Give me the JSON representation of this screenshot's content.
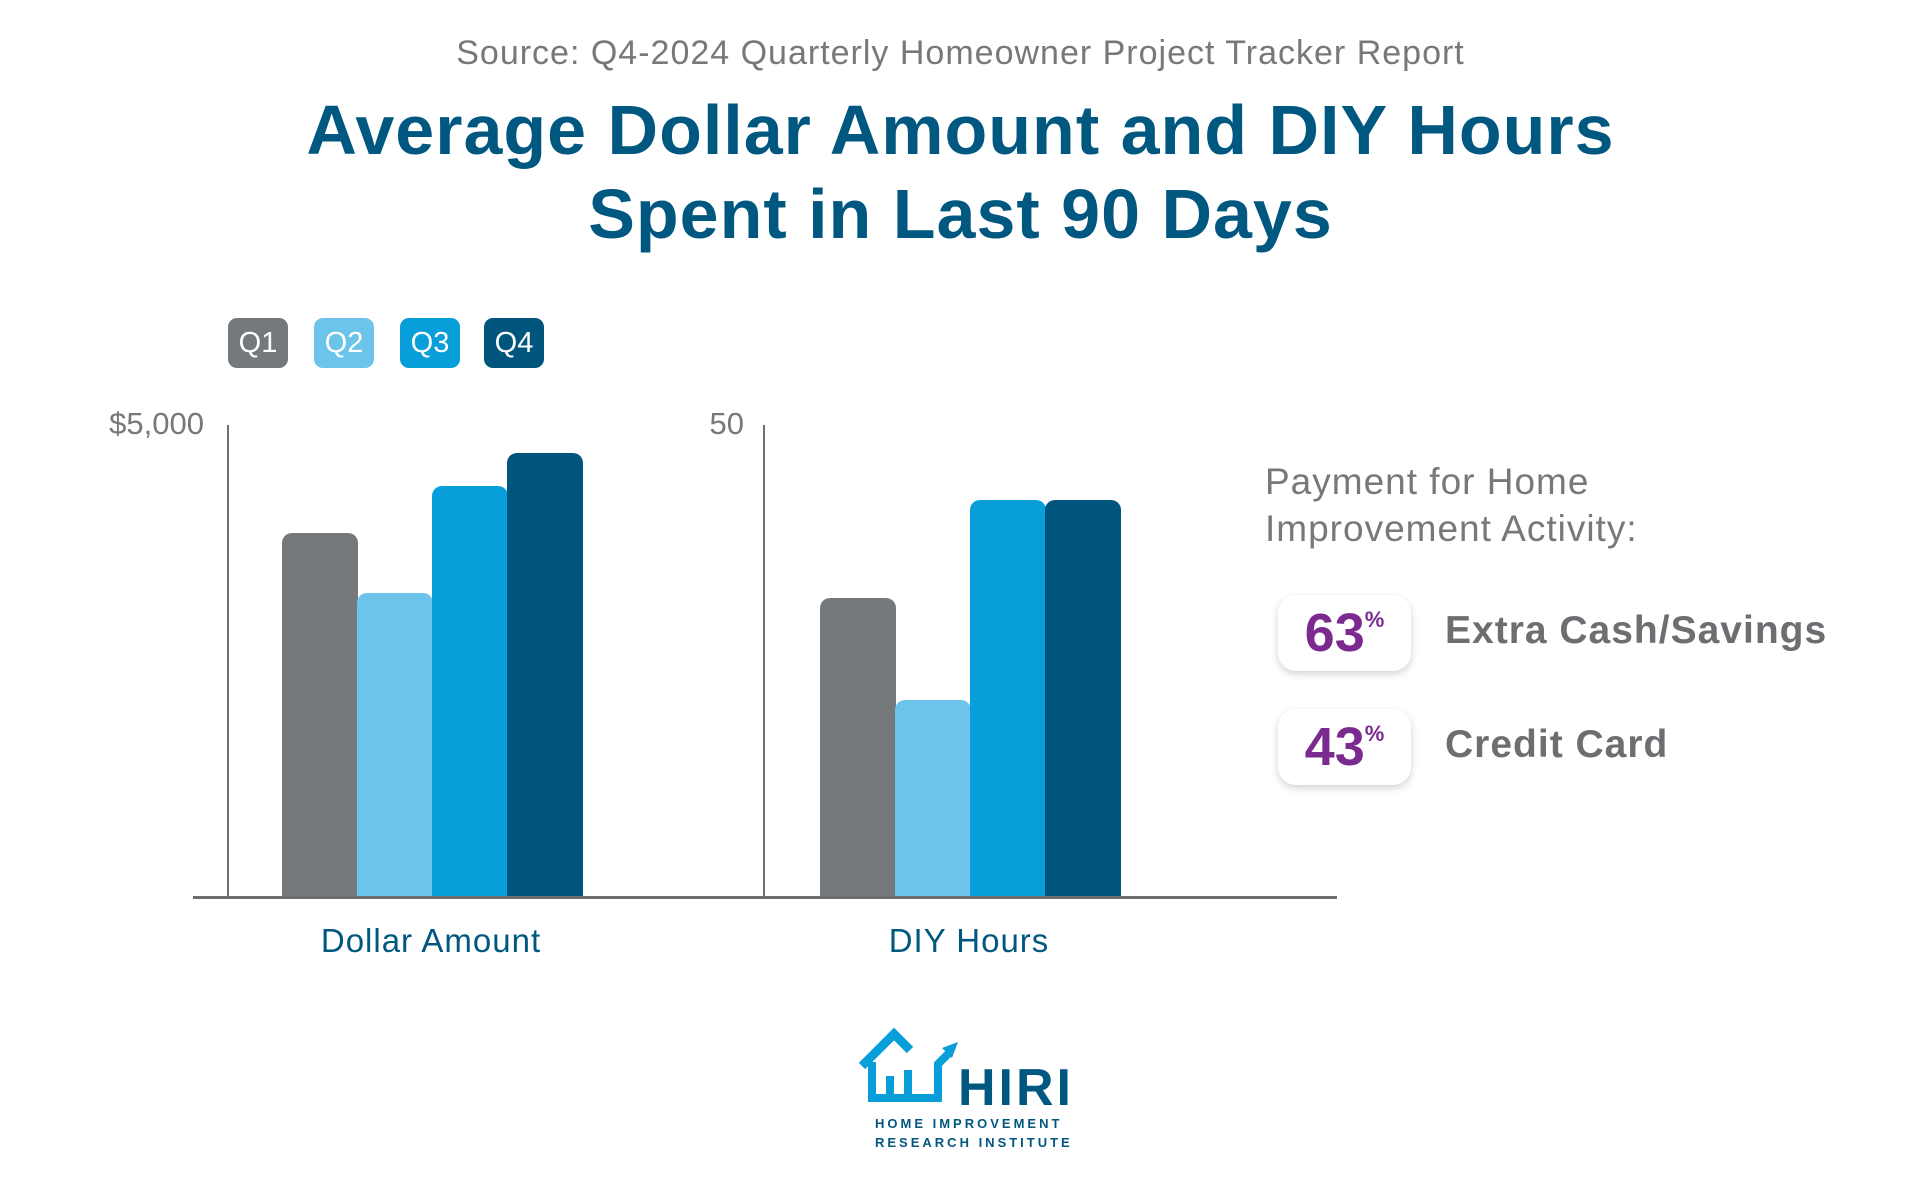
{
  "source": "Source: Q4-2024 Quarterly Homeowner Project Tracker Report",
  "title_line1": "Average Dollar Amount and DIY Hours",
  "title_line2": "Spent in Last 90 Days",
  "legend": [
    {
      "label": "Q1",
      "color": "#75797b"
    },
    {
      "label": "Q2",
      "color": "#6cc4eb"
    },
    {
      "label": "Q3",
      "color": "#079ed9"
    },
    {
      "label": "Q4",
      "color": "#00557c"
    }
  ],
  "chart_data": [
    {
      "type": "bar",
      "xlabel": "Dollar Amount",
      "ytick_top": "$5,000",
      "ylim": [
        0,
        5000
      ],
      "categories": [
        "Q1",
        "Q2",
        "Q3",
        "Q4"
      ],
      "values": [
        3900,
        3250,
        4400,
        4750
      ],
      "legend_placement": "top-left",
      "grid": false
    },
    {
      "type": "bar",
      "xlabel": "DIY Hours",
      "ytick_top": "50",
      "ylim": [
        0,
        50
      ],
      "categories": [
        "Q1",
        "Q2",
        "Q3",
        "Q4"
      ],
      "values": [
        32,
        21,
        42.5,
        42.5
      ],
      "legend_placement": "top-left",
      "grid": false
    }
  ],
  "payment": {
    "heading_line1": "Payment for Home",
    "heading_line2": "Improvement Activity:",
    "items": [
      {
        "value": "63",
        "unit": "%",
        "label": "Extra Cash/Savings"
      },
      {
        "value": "43",
        "unit": "%",
        "label": "Credit Card"
      }
    ]
  },
  "logo": {
    "name": "HIRI",
    "line1": "HOME IMPROVEMENT",
    "line2": "RESEARCH INSTITUTE"
  }
}
